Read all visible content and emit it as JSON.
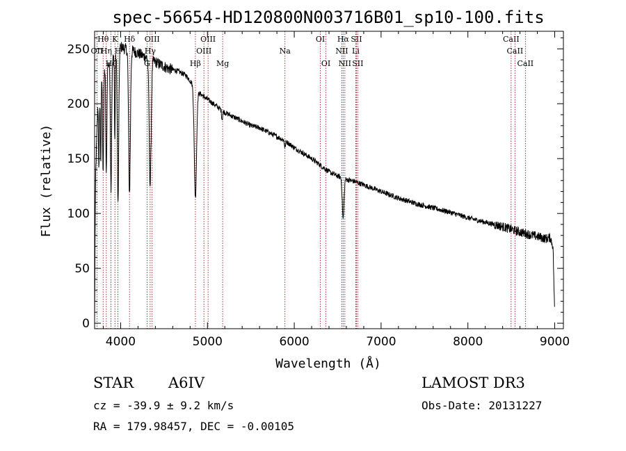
{
  "chart_data": {
    "type": "line",
    "title": "spec-56654-HD120800N003716B01_sp10-100.fits",
    "xlabel": "Wavelength (Å)",
    "ylabel": "Flux (relative)",
    "xlim": [
      3700,
      9100
    ],
    "ylim": [
      -5,
      266
    ],
    "x_ticks": [
      4000,
      5000,
      6000,
      7000,
      8000,
      9000
    ],
    "x_tick_labels": [
      "4000",
      "5000",
      "6000",
      "7000",
      "8000",
      "9000"
    ],
    "y_ticks": [
      0,
      50,
      100,
      150,
      200,
      250
    ],
    "y_tick_labels": [
      "0",
      "50",
      "100",
      "150",
      "200",
      "250"
    ],
    "continuum": [
      [
        3700,
        0
      ],
      [
        3705,
        70
      ],
      [
        3712,
        135
      ],
      [
        3740,
        205
      ],
      [
        3780,
        228
      ],
      [
        3820,
        232
      ],
      [
        3880,
        238
      ],
      [
        3950,
        245
      ],
      [
        4000,
        252
      ],
      [
        4050,
        250
      ],
      [
        4150,
        248
      ],
      [
        4250,
        244
      ],
      [
        4350,
        240
      ],
      [
        4450,
        236
      ],
      [
        4550,
        232
      ],
      [
        4650,
        230
      ],
      [
        4750,
        226
      ],
      [
        4830,
        218
      ],
      [
        4900,
        210
      ],
      [
        5000,
        204
      ],
      [
        5100,
        198
      ],
      [
        5200,
        192
      ],
      [
        5300,
        188
      ],
      [
        5400,
        184
      ],
      [
        5500,
        180
      ],
      [
        5600,
        178
      ],
      [
        5700,
        174
      ],
      [
        5800,
        170
      ],
      [
        5900,
        166
      ],
      [
        6000,
        160
      ],
      [
        6100,
        155
      ],
      [
        6200,
        150
      ],
      [
        6300,
        144
      ],
      [
        6400,
        138
      ],
      [
        6500,
        134
      ],
      [
        6600,
        131
      ],
      [
        6700,
        129
      ],
      [
        6800,
        126
      ],
      [
        6900,
        123
      ],
      [
        7000,
        120
      ],
      [
        7200,
        114
      ],
      [
        7400,
        109
      ],
      [
        7600,
        105
      ],
      [
        7800,
        101
      ],
      [
        8000,
        96
      ],
      [
        8200,
        92
      ],
      [
        8400,
        88
      ],
      [
        8600,
        83
      ],
      [
        8800,
        79
      ],
      [
        8900,
        77
      ],
      [
        8950,
        78
      ],
      [
        8980,
        70
      ],
      [
        8990,
        40
      ],
      [
        9000,
        5
      ]
    ],
    "absorption": [
      {
        "center": 3750,
        "depth": 70,
        "width": 5
      },
      {
        "center": 3771,
        "depth": 75,
        "width": 5
      },
      {
        "center": 3798,
        "depth": 90,
        "width": 6
      },
      {
        "center": 3835,
        "depth": 100,
        "width": 6
      },
      {
        "center": 3889,
        "depth": 115,
        "width": 7
      },
      {
        "center": 3933,
        "depth": 80,
        "width": 4
      },
      {
        "center": 3970,
        "depth": 140,
        "width": 8
      },
      {
        "center": 4102,
        "depth": 130,
        "width": 10
      },
      {
        "center": 4340,
        "depth": 115,
        "width": 11
      },
      {
        "center": 4861,
        "depth": 100,
        "width": 13
      },
      {
        "center": 5169,
        "depth": 8,
        "width": 6
      },
      {
        "center": 5893,
        "depth": 6,
        "width": 6
      },
      {
        "center": 6563,
        "depth": 37,
        "width": 10
      }
    ],
    "noise_amplitude": 2.4,
    "lines": [
      {
        "label": "Hθ",
        "x": 3798,
        "row": 1
      },
      {
        "label": "K",
        "x": 3934,
        "row": 1
      },
      {
        "label": "Hδ",
        "x": 4102,
        "row": 1
      },
      {
        "label": "OIII",
        "x": 4363,
        "row": 1
      },
      {
        "label": "OIII",
        "x": 5007,
        "row": 1
      },
      {
        "label": "OI",
        "x": 6300,
        "row": 1
      },
      {
        "label": "Hα",
        "x": 6563,
        "row": 1
      },
      {
        "label": "SII",
        "x": 6716,
        "row": 1
      },
      {
        "label": "CaII",
        "x": 8498,
        "row": 1
      },
      {
        "label": "OII",
        "x": 3727,
        "row": 2
      },
      {
        "label": "Hη",
        "x": 3835,
        "row": 2
      },
      {
        "label": "H",
        "x": 3969,
        "row": 2
      },
      {
        "label": "Hγ",
        "x": 4340,
        "row": 2
      },
      {
        "label": "OIII",
        "x": 4959,
        "row": 2
      },
      {
        "label": "Na",
        "x": 5893,
        "row": 2
      },
      {
        "label": "NII",
        "x": 6548,
        "row": 2
      },
      {
        "label": "Li",
        "x": 6708,
        "row": 2
      },
      {
        "label": "CaII",
        "x": 8542,
        "row": 2
      },
      {
        "label": "Hζ",
        "x": 3889,
        "row": 3
      },
      {
        "label": "G",
        "x": 4304,
        "row": 3
      },
      {
        "label": "Hβ",
        "x": 4861,
        "row": 3
      },
      {
        "label": "Mg",
        "x": 5175,
        "row": 3
      },
      {
        "label": "OI",
        "x": 6364,
        "row": 3
      },
      {
        "label": "NII",
        "x": 6583,
        "row": 3
      },
      {
        "label": "SII",
        "x": 6731,
        "row": 3
      },
      {
        "label": "CaII",
        "x": 8662,
        "row": 3
      }
    ],
    "line_color": "#8b0000"
  },
  "info": {
    "object_class": "STAR",
    "subclass": "A6IV",
    "survey": "LAMOST DR3",
    "redshift": "cz = -39.9 ± 9.2 km/s",
    "obs_date": "Obs-Date: 20131227",
    "coords": "RA = 179.98457, DEC =  -0.00105"
  }
}
